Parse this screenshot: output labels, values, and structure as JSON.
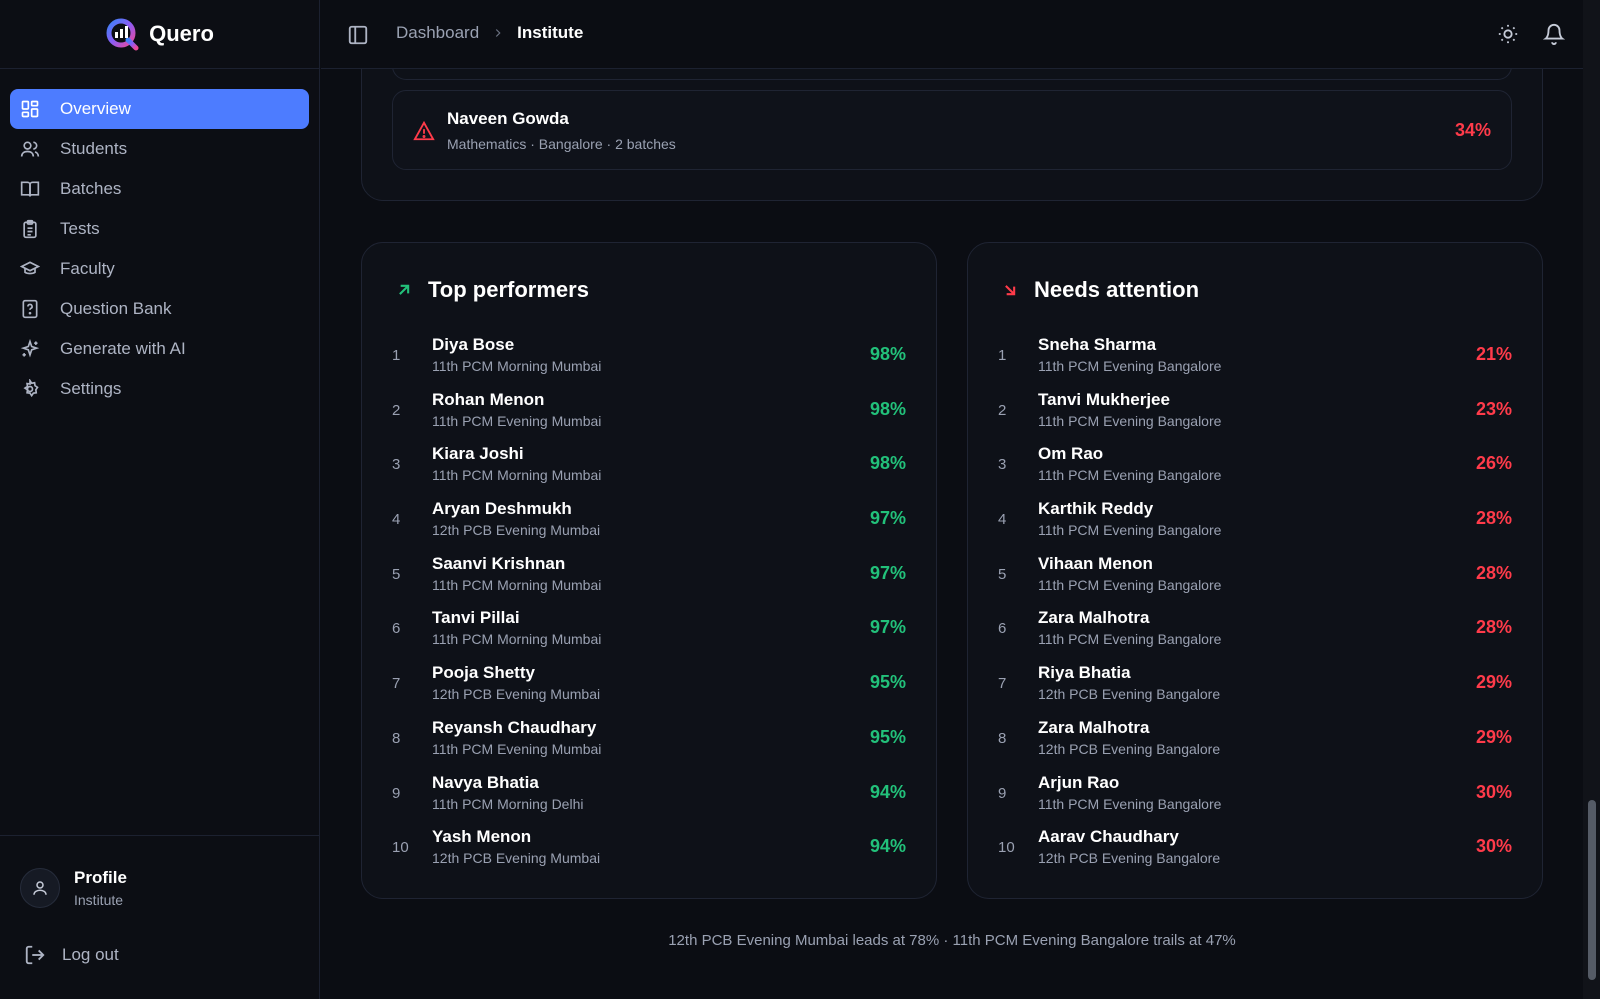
{
  "brand": {
    "name": "Quero"
  },
  "sidebar": {
    "items": [
      {
        "label": "Overview",
        "icon": "dashboard-icon",
        "active": true
      },
      {
        "label": "Students",
        "icon": "users-icon"
      },
      {
        "label": "Batches",
        "icon": "book-icon"
      },
      {
        "label": "Tests",
        "icon": "clipboard-icon"
      },
      {
        "label": "Faculty",
        "icon": "graduation-cap-icon"
      },
      {
        "label": "Question Bank",
        "icon": "help-file-icon"
      },
      {
        "label": "Generate with AI",
        "icon": "sparkles-icon"
      },
      {
        "label": "Settings",
        "icon": "gear-icon"
      }
    ],
    "profile": {
      "name": "Profile",
      "role": "Institute"
    },
    "logout_label": "Log out"
  },
  "header": {
    "breadcrumb": [
      "Dashboard",
      "Institute"
    ]
  },
  "alert": {
    "name": "Naveen Gowda",
    "meta": "Mathematics · Bangalore · 2 batches",
    "percent": "34%"
  },
  "top_performers": {
    "title": "Top performers",
    "rows": [
      {
        "rank": "1",
        "name": "Diya Bose",
        "batch": "11th PCM Morning Mumbai",
        "pct": "98%"
      },
      {
        "rank": "2",
        "name": "Rohan Menon",
        "batch": "11th PCM Evening Mumbai",
        "pct": "98%"
      },
      {
        "rank": "3",
        "name": "Kiara Joshi",
        "batch": "11th PCM Morning Mumbai",
        "pct": "98%"
      },
      {
        "rank": "4",
        "name": "Aryan Deshmukh",
        "batch": "12th PCB Evening Mumbai",
        "pct": "97%"
      },
      {
        "rank": "5",
        "name": "Saanvi Krishnan",
        "batch": "11th PCM Morning Mumbai",
        "pct": "97%"
      },
      {
        "rank": "6",
        "name": "Tanvi Pillai",
        "batch": "11th PCM Morning Mumbai",
        "pct": "97%"
      },
      {
        "rank": "7",
        "name": "Pooja Shetty",
        "batch": "12th PCB Evening Mumbai",
        "pct": "95%"
      },
      {
        "rank": "8",
        "name": "Reyansh Chaudhary",
        "batch": "11th PCM Evening Mumbai",
        "pct": "95%"
      },
      {
        "rank": "9",
        "name": "Navya Bhatia",
        "batch": "11th PCM Morning Delhi",
        "pct": "94%"
      },
      {
        "rank": "10",
        "name": "Yash Menon",
        "batch": "12th PCB Evening Mumbai",
        "pct": "94%"
      }
    ]
  },
  "needs_attention": {
    "title": "Needs attention",
    "rows": [
      {
        "rank": "1",
        "name": "Sneha Sharma",
        "batch": "11th PCM Evening Bangalore",
        "pct": "21%"
      },
      {
        "rank": "2",
        "name": "Tanvi Mukherjee",
        "batch": "11th PCM Evening Bangalore",
        "pct": "23%"
      },
      {
        "rank": "3",
        "name": "Om Rao",
        "batch": "11th PCM Evening Bangalore",
        "pct": "26%"
      },
      {
        "rank": "4",
        "name": "Karthik Reddy",
        "batch": "11th PCM Evening Bangalore",
        "pct": "28%"
      },
      {
        "rank": "5",
        "name": "Vihaan Menon",
        "batch": "11th PCM Evening Bangalore",
        "pct": "28%"
      },
      {
        "rank": "6",
        "name": "Zara Malhotra",
        "batch": "11th PCM Evening Bangalore",
        "pct": "28%"
      },
      {
        "rank": "7",
        "name": "Riya Bhatia",
        "batch": "12th PCB Evening Bangalore",
        "pct": "29%"
      },
      {
        "rank": "8",
        "name": "Zara Malhotra",
        "batch": "12th PCB Evening Bangalore",
        "pct": "29%"
      },
      {
        "rank": "9",
        "name": "Arjun Rao",
        "batch": "11th PCM Evening Bangalore",
        "pct": "30%"
      },
      {
        "rank": "10",
        "name": "Aarav Chaudhary",
        "batch": "12th PCB Evening Bangalore",
        "pct": "30%"
      }
    ]
  },
  "footer_note": "12th PCB Evening Mumbai leads at 78% · 11th PCM Evening Bangalore trails at 47%",
  "colors": {
    "accent": "#4d7cff",
    "good": "#22c17a",
    "bad": "#ff3b4a"
  }
}
